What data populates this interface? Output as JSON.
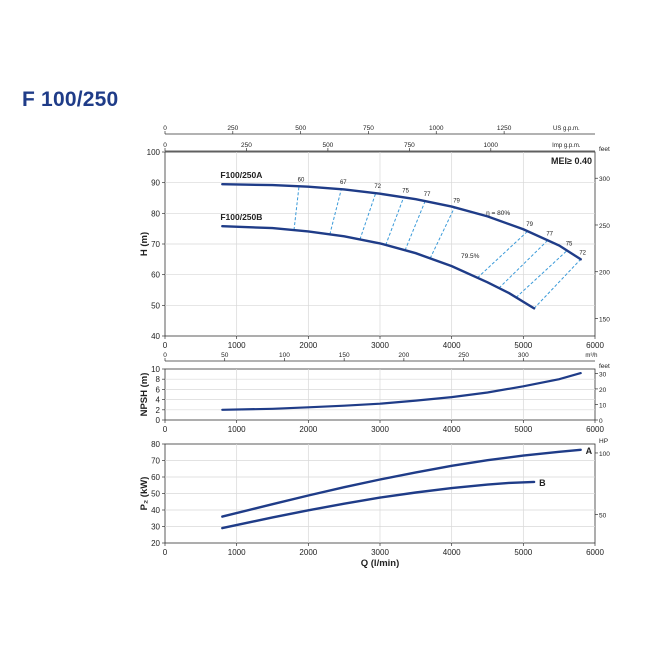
{
  "page": {
    "title": "F 100/250"
  },
  "colors": {
    "curve": "#1f3c88",
    "efficiency": "#3a9ad9",
    "grid": "#d8d8d8",
    "axis": "#333333",
    "text": "#222222",
    "title": "#1f3c88"
  },
  "chart_data": [
    {
      "id": "head",
      "type": "line",
      "ylabel": "H (m)",
      "ylabel_right": "feet",
      "badge": "MEI≥ 0.40",
      "xlim": [
        0,
        6000
      ],
      "ylim": [
        40,
        100
      ],
      "x_ticks": [
        0,
        1000,
        2000,
        3000,
        4000,
        5000,
        6000
      ],
      "y_ticks": [
        40,
        50,
        60,
        70,
        80,
        90,
        100
      ],
      "right_ticks": [
        150,
        200,
        250,
        300
      ],
      "top_axis_1": {
        "unit": "US g.p.m.",
        "ticks": [
          "0",
          "250",
          "500",
          "750",
          "1000",
          "1250"
        ],
        "values_lpm": [
          0,
          946,
          1893,
          2839,
          3785,
          4732
        ],
        "unit_value_lpm": 5600
      },
      "top_axis_2": {
        "unit": "Imp g.p.m.",
        "ticks": [
          "0",
          "250",
          "500",
          "750",
          "1000"
        ],
        "values_lpm": [
          0,
          1137,
          2273,
          3410,
          4546
        ],
        "unit_value_lpm": 5600
      },
      "series": [
        {
          "name": "F100/250A",
          "x": [
            800,
            1500,
            2000,
            2500,
            3000,
            3500,
            4000,
            4500,
            5000,
            5500,
            5800
          ],
          "y": [
            89.5,
            89.2,
            88.7,
            87.8,
            86.4,
            84.6,
            82.2,
            79.0,
            74.8,
            69.5,
            65.0
          ]
        },
        {
          "name": "F100/250B",
          "x": [
            800,
            1500,
            2000,
            2500,
            3000,
            3500,
            4000,
            4500,
            4800,
            5150
          ],
          "y": [
            75.8,
            75.2,
            74.1,
            72.5,
            70.2,
            67.0,
            62.8,
            57.5,
            54.0,
            49.0
          ]
        }
      ],
      "efficiency_lines": [
        {
          "label": "60",
          "a": 1870,
          "b": 1800
        },
        {
          "label": "67",
          "a": 2460,
          "b": 2300
        },
        {
          "label": "72",
          "a": 2940,
          "b": 2720
        },
        {
          "label": "75",
          "a": 3330,
          "b": 3080
        },
        {
          "label": "77",
          "a": 3630,
          "b": 3350
        },
        {
          "label": "79",
          "a": 4040,
          "b": 3700
        },
        {
          "label": "79",
          "a": 5060,
          "b": 4360
        },
        {
          "label": "77",
          "a": 5340,
          "b": 4660
        },
        {
          "label": "75",
          "a": 5610,
          "b": 4900
        },
        {
          "label": "72",
          "a": 5800,
          "b": 5150
        }
      ],
      "annotations": [
        {
          "text": "η = 80%",
          "x": 4480,
          "y": 79.5
        },
        {
          "text": "79.5%",
          "x": 4130,
          "y": 65.5
        }
      ]
    },
    {
      "id": "npsh",
      "type": "line",
      "ylabel": "NPSH (m)",
      "ylabel_right": "feet",
      "xlim": [
        0,
        6000
      ],
      "ylim": [
        0,
        10
      ],
      "x_ticks": [
        0,
        1000,
        2000,
        3000,
        4000,
        5000,
        6000
      ],
      "y_ticks": [
        0,
        2,
        4,
        6,
        8,
        10
      ],
      "right_ticks": [
        0,
        10,
        20,
        30
      ],
      "top_axis": {
        "unit": "m³/h",
        "ticks": [
          "0",
          "50",
          "100",
          "150",
          "200",
          "250",
          "300"
        ],
        "values_lpm": [
          0,
          833,
          1667,
          2500,
          3333,
          4167,
          5000
        ],
        "unit_value_lpm": 5950
      },
      "series": [
        {
          "name": "",
          "x": [
            800,
            1500,
            2000,
            2500,
            3000,
            3500,
            4000,
            4500,
            5000,
            5500,
            5800
          ],
          "y": [
            2.0,
            2.2,
            2.5,
            2.8,
            3.2,
            3.8,
            4.5,
            5.4,
            6.6,
            8.0,
            9.2
          ]
        }
      ]
    },
    {
      "id": "power",
      "type": "line",
      "ylabel": "P₂ (kW)",
      "ylabel_right": "HP",
      "xlabel": "Q (l/min)",
      "xlim": [
        0,
        6000
      ],
      "ylim": [
        20,
        80
      ],
      "x_ticks": [
        0,
        1000,
        2000,
        3000,
        4000,
        5000,
        6000
      ],
      "y_ticks": [
        20,
        30,
        40,
        50,
        60,
        70,
        80
      ],
      "right_ticks": [
        50,
        100
      ],
      "series": [
        {
          "name": "A",
          "x": [
            800,
            1500,
            2000,
            2500,
            3000,
            3500,
            4000,
            4500,
            5000,
            5500,
            5800
          ],
          "y": [
            36.0,
            43.5,
            48.8,
            53.8,
            58.5,
            62.8,
            66.8,
            70.2,
            73.0,
            75.3,
            76.5
          ]
        },
        {
          "name": "B",
          "x": [
            800,
            1500,
            2000,
            2500,
            3000,
            3500,
            4000,
            4500,
            4800,
            5150
          ],
          "y": [
            29.0,
            35.5,
            39.8,
            43.8,
            47.5,
            50.6,
            53.3,
            55.4,
            56.4,
            57.0
          ]
        }
      ]
    }
  ]
}
